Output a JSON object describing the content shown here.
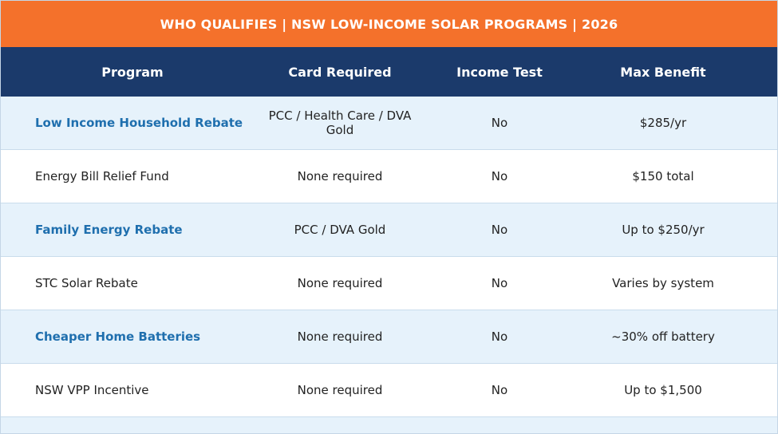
{
  "header": {
    "title": "WHO QUALIFIES | NSW LOW-INCOME SOLAR PROGRAMS | 2026"
  },
  "table": {
    "columns": [
      "Program",
      "Card Required",
      "Income Test",
      "Max Benefit"
    ],
    "rows": [
      [
        "Low Income Household Rebate",
        "PCC / Health Care / DVA Gold",
        "No",
        "$285/yr"
      ],
      [
        "Energy Bill Relief Fund",
        "None required",
        "No",
        "$150 total"
      ],
      [
        "Family Energy Rebate",
        "PCC / DVA Gold",
        "No",
        "Up to $250/yr"
      ],
      [
        "STC Solar Rebate",
        "None required",
        "No",
        "Varies by system"
      ],
      [
        "Cheaper Home Batteries",
        "None required",
        "No",
        "~30% off battery"
      ],
      [
        "NSW VPP Incentive",
        "None required",
        "No",
        "Up to $1,500"
      ]
    ]
  }
}
